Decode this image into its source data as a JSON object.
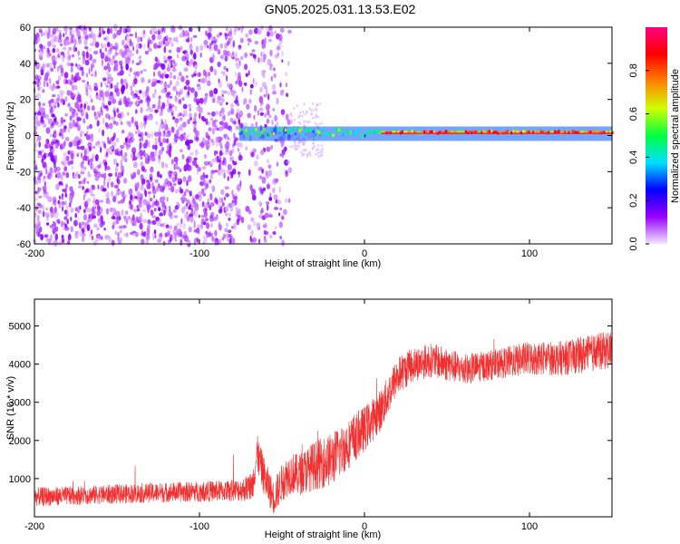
{
  "title": "GN05.2025.031.13.53.E02",
  "chart_data": [
    {
      "type": "heatmap",
      "xlabel": "Height of straight line (km)",
      "ylabel": "Frequency (Hz)",
      "xlim": [
        -200,
        150
      ],
      "ylim": [
        -60,
        60
      ],
      "xticks": [
        -200,
        -100,
        0,
        100
      ],
      "yticks": [
        -60,
        -40,
        -20,
        0,
        20,
        40,
        60
      ],
      "noise_band_x": [
        -200,
        -45
      ],
      "carrier_start_x": -76,
      "carrier_frequency_hz": 1,
      "colorbar": {
        "label": "Normalized spectral amplitude",
        "range": [
          0,
          1
        ],
        "ticks": [
          0.0,
          0.2,
          0.4,
          0.6,
          0.8
        ],
        "colors": [
          "#f0e6ff",
          "#9a00ff",
          "#0000ff",
          "#00e0ff",
          "#00ff40",
          "#d0ff00",
          "#ff8000",
          "#ff0000",
          "#ff0080"
        ]
      }
    },
    {
      "type": "line",
      "xlabel": "Height of straight line (km)",
      "ylabel": "SNR (10 * v/v)",
      "xlim": [
        -200,
        150
      ],
      "ylim": [
        0,
        5700
      ],
      "xticks": [
        -200,
        -100,
        0,
        100
      ],
      "yticks": [
        1000,
        2000,
        3000,
        4000,
        5000
      ],
      "line_color": "#f03030",
      "envelope_x": [
        -200,
        -160,
        -120,
        -85,
        -75,
        -68,
        -65,
        -60,
        -55,
        -50,
        -45,
        -40,
        -30,
        -20,
        -10,
        0,
        10,
        20,
        30,
        40,
        50,
        60,
        80,
        100,
        120,
        140,
        150
      ],
      "envelope_mean": [
        520,
        580,
        640,
        680,
        700,
        800,
        1650,
        950,
        500,
        900,
        1150,
        1100,
        1350,
        1500,
        1900,
        2300,
        2800,
        3700,
        4000,
        4100,
        4000,
        3850,
        4000,
        4150,
        4150,
        4300,
        4400
      ],
      "envelope_spread": [
        250,
        250,
        260,
        280,
        300,
        400,
        500,
        500,
        450,
        500,
        550,
        550,
        650,
        700,
        650,
        600,
        550,
        500,
        450,
        450,
        450,
        400,
        400,
        450,
        450,
        500,
        500
      ]
    }
  ]
}
